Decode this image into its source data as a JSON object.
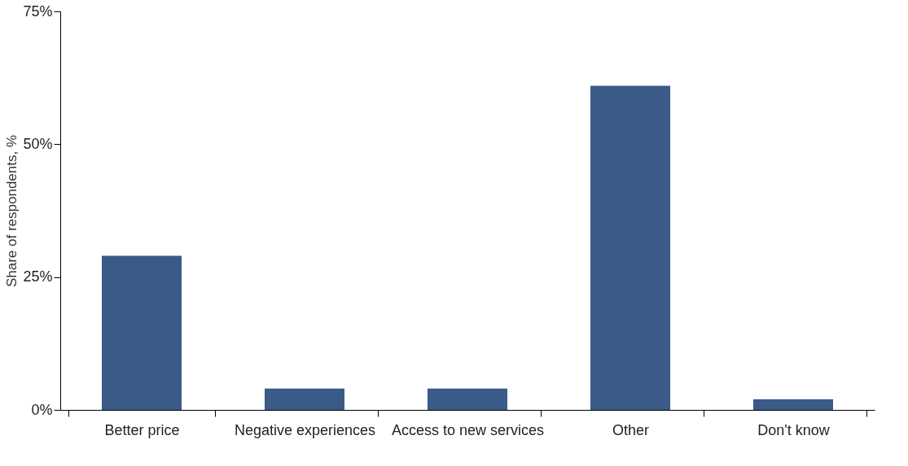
{
  "chart_data": {
    "type": "bar",
    "ylabel": "Share of respondents, %",
    "categories": [
      "Better price",
      "Negative experiences",
      "Access to new services",
      "Other",
      "Don't know"
    ],
    "values": [
      29,
      4,
      4,
      61,
      2
    ],
    "color": "#3a5a88",
    "ylim": [
      0,
      75
    ],
    "yticks": [
      {
        "value": 0,
        "label": "0%"
      },
      {
        "value": 25,
        "label": "25%"
      },
      {
        "value": 50,
        "label": "50%"
      },
      {
        "value": 75,
        "label": "75%"
      }
    ],
    "grid": false
  }
}
